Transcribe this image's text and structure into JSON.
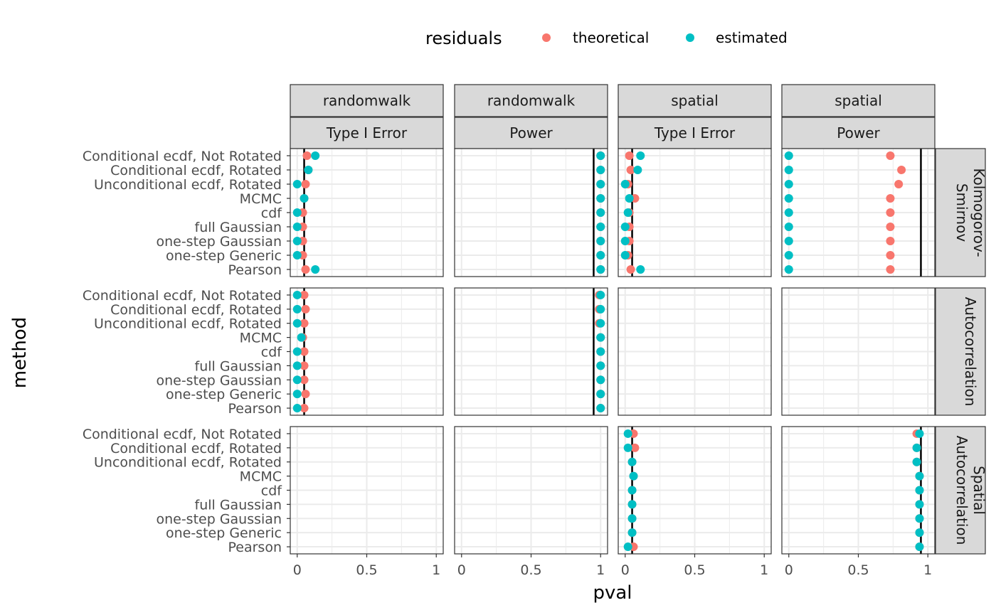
{
  "legend": {
    "title": "residuals",
    "items": [
      "theoretical",
      "estimated"
    ]
  },
  "colors": {
    "theoretical": "#F8766D",
    "estimated": "#00BFC4",
    "strip_bg": "#D9D9D9",
    "grid": "#EBEBEB"
  },
  "chart_data": {
    "type": "scatter",
    "xlabel": "pval",
    "ylabel": "method",
    "xlim": [
      -0.05,
      1.05
    ],
    "x_ticks": [
      "0",
      "0.5",
      "1"
    ],
    "x_tick_values": [
      0,
      0.5,
      1
    ],
    "methods": [
      "Conditional ecdf, Not Rotated",
      "Conditional ecdf, Rotated",
      "Unconditional ecdf, Rotated",
      "MCMC",
      "cdf",
      "full Gaussian",
      "one-step Gaussian",
      "one-step Generic",
      "Pearson"
    ],
    "col_strips": [
      {
        "top": "randomwalk",
        "bottom": "Type I Error"
      },
      {
        "top": "randomwalk",
        "bottom": "Power"
      },
      {
        "top": "spatial",
        "bottom": "Type I Error"
      },
      {
        "top": "spatial",
        "bottom": "Power"
      }
    ],
    "row_strips": [
      [
        "Kolmogorov-",
        "Smirnov"
      ],
      [
        "Autocorrelation"
      ],
      [
        "Spatial",
        "Autocorrelation"
      ]
    ],
    "ref_lines": [
      0.05,
      0.95,
      0.05,
      0.95
    ],
    "panels": [
      [
        {
          "ref": 0.05,
          "theoretical": [
            0.07,
            0.08,
            0.06,
            0.05,
            0.04,
            0.04,
            0.04,
            0.04,
            0.06
          ],
          "estimated": [
            0.13,
            0.08,
            0.0,
            0.05,
            0.0,
            0.0,
            0.0,
            0.0,
            0.13
          ]
        },
        {
          "ref": 0.95,
          "theoretical": [
            1.0,
            1.0,
            1.0,
            1.0,
            1.0,
            1.0,
            1.0,
            1.0,
            1.0
          ],
          "estimated": [
            1.0,
            1.0,
            1.0,
            1.0,
            1.0,
            1.0,
            1.0,
            1.0,
            1.0
          ]
        },
        {
          "ref": 0.05,
          "theoretical": [
            0.03,
            0.04,
            0.02,
            0.07,
            0.03,
            0.03,
            0.03,
            0.02,
            0.04
          ],
          "estimated": [
            0.11,
            0.09,
            0.0,
            0.03,
            0.02,
            0.0,
            0.0,
            0.0,
            0.11
          ]
        },
        {
          "ref": 0.95,
          "theoretical": [
            0.73,
            0.81,
            0.79,
            0.73,
            0.73,
            0.73,
            0.73,
            0.73,
            0.73
          ],
          "estimated": [
            0.0,
            0.0,
            0.0,
            0.0,
            0.0,
            0.0,
            0.0,
            0.0,
            0.0
          ]
        }
      ],
      [
        {
          "ref": 0.05,
          "theoretical": [
            0.05,
            0.06,
            0.05,
            0.04,
            0.05,
            0.05,
            0.05,
            0.06,
            0.05
          ],
          "estimated": [
            0.0,
            0.0,
            0.0,
            0.03,
            0.0,
            0.0,
            0.0,
            0.0,
            0.0
          ]
        },
        {
          "ref": 0.95,
          "theoretical": [
            0.99,
            0.99,
            0.99,
            1.0,
            1.0,
            1.0,
            1.0,
            1.0,
            1.0
          ],
          "estimated": [
            1.0,
            1.0,
            1.0,
            1.0,
            1.0,
            1.0,
            1.0,
            1.0,
            1.0
          ]
        },
        {
          "ref": null,
          "theoretical": [],
          "estimated": []
        },
        {
          "ref": null,
          "theoretical": [],
          "estimated": []
        }
      ],
      [
        {
          "ref": null,
          "theoretical": [],
          "estimated": []
        },
        {
          "ref": null,
          "theoretical": [],
          "estimated": []
        },
        {
          "ref": 0.05,
          "theoretical": [
            0.06,
            0.07,
            0.05,
            0.06,
            0.05,
            0.05,
            0.05,
            0.05,
            0.06
          ],
          "estimated": [
            0.02,
            0.02,
            0.05,
            0.06,
            0.05,
            0.05,
            0.05,
            0.05,
            0.02
          ]
        },
        {
          "ref": 0.95,
          "theoretical": [
            0.92,
            0.92,
            0.92,
            0.94,
            0.94,
            0.94,
            0.94,
            0.94,
            0.94
          ],
          "estimated": [
            0.94,
            0.92,
            0.92,
            0.94,
            0.94,
            0.94,
            0.94,
            0.94,
            0.94
          ]
        }
      ]
    ]
  }
}
